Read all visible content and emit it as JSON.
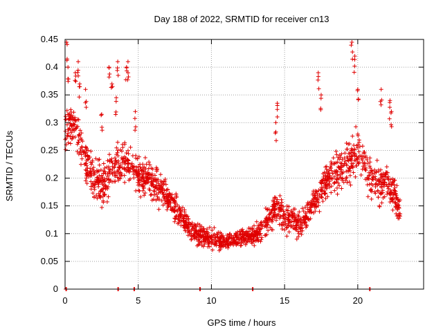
{
  "chart_data": {
    "type": "scatter",
    "title": "Day 188 of 2022, SRMTID for receiver cn13",
    "xlabel": "GPS time / hours",
    "ylabel": "SRMTID / TECUs",
    "xlim": [
      0,
      24.5
    ],
    "ylim": [
      0,
      0.45
    ],
    "x_ticks": [
      0,
      5,
      10,
      15,
      20
    ],
    "y_ticks": [
      0,
      0.05,
      0.1,
      0.15,
      0.2,
      0.25,
      0.3,
      0.35,
      0.4,
      0.45
    ],
    "x_tick_labels": [
      "0",
      "5",
      "10",
      "15",
      "20"
    ],
    "y_tick_labels": [
      "0",
      "0.05",
      "0.1",
      "0.15",
      "0.2",
      "0.25",
      "0.3",
      "0.35",
      "0.4",
      "0.45"
    ],
    "grid": true,
    "marker": "+",
    "color": "#e00000",
    "trend": {
      "x": [
        0,
        0.5,
        1,
        1.5,
        2,
        2.5,
        3,
        3.5,
        4,
        4.5,
        5,
        5.5,
        6,
        6.5,
        7,
        7.5,
        8,
        8.5,
        9,
        9.5,
        10,
        10.5,
        11,
        11.5,
        12,
        12.5,
        13,
        13.5,
        14,
        14.5,
        15,
        15.5,
        16,
        16.5,
        17,
        17.5,
        18,
        18.5,
        19,
        19.5,
        20,
        20.5,
        21,
        21.5,
        22,
        22.5,
        22.9
      ],
      "y": [
        0.29,
        0.3,
        0.27,
        0.23,
        0.2,
        0.19,
        0.2,
        0.22,
        0.23,
        0.22,
        0.21,
        0.2,
        0.19,
        0.18,
        0.165,
        0.15,
        0.13,
        0.11,
        0.1,
        0.095,
        0.09,
        0.085,
        0.085,
        0.09,
        0.09,
        0.095,
        0.1,
        0.11,
        0.13,
        0.15,
        0.13,
        0.12,
        0.12,
        0.13,
        0.16,
        0.18,
        0.2,
        0.21,
        0.22,
        0.23,
        0.25,
        0.22,
        0.2,
        0.19,
        0.19,
        0.17,
        0.14
      ]
    },
    "spread": {
      "x": [
        0,
        1,
        2,
        3,
        4,
        5,
        6,
        7,
        8,
        9,
        10,
        11,
        12,
        13,
        14,
        15,
        16,
        17,
        18,
        19,
        20,
        21,
        22,
        23
      ],
      "y": [
        0.08,
        0.08,
        0.07,
        0.08,
        0.07,
        0.06,
        0.06,
        0.05,
        0.045,
        0.04,
        0.035,
        0.03,
        0.03,
        0.035,
        0.06,
        0.05,
        0.045,
        0.05,
        0.06,
        0.07,
        0.08,
        0.07,
        0.06,
        0.05
      ]
    },
    "spikes": [
      {
        "x": 0.1,
        "y": 0.445
      },
      {
        "x": 0.2,
        "y": 0.4
      },
      {
        "x": 0.7,
        "y": 0.39
      },
      {
        "x": 0.9,
        "y": 0.41
      },
      {
        "x": 1.0,
        "y": 0.37
      },
      {
        "x": 1.4,
        "y": 0.36
      },
      {
        "x": 2.5,
        "y": 0.315
      },
      {
        "x": 3.0,
        "y": 0.4
      },
      {
        "x": 3.2,
        "y": 0.37
      },
      {
        "x": 3.5,
        "y": 0.345
      },
      {
        "x": 3.6,
        "y": 0.41
      },
      {
        "x": 4.2,
        "y": 0.4
      },
      {
        "x": 4.3,
        "y": 0.41
      },
      {
        "x": 4.8,
        "y": 0.32
      },
      {
        "x": 14.4,
        "y": 0.3
      },
      {
        "x": 14.5,
        "y": 0.335
      },
      {
        "x": 17.3,
        "y": 0.39
      },
      {
        "x": 17.5,
        "y": 0.35
      },
      {
        "x": 19.6,
        "y": 0.445
      },
      {
        "x": 19.8,
        "y": 0.42
      },
      {
        "x": 20.0,
        "y": 0.36
      },
      {
        "x": 21.6,
        "y": 0.36
      },
      {
        "x": 22.2,
        "y": 0.34
      },
      {
        "x": 22.3,
        "y": 0.32
      }
    ],
    "zero_markers": [
      0.05,
      3.6,
      4.7,
      9.2,
      12.8,
      20.8
    ],
    "seed": 188,
    "n_points_per_hour": 80
  }
}
